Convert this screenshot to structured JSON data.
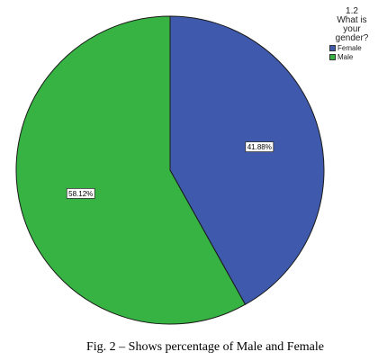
{
  "chart_data": {
    "type": "pie",
    "categories": [
      "Female",
      "Male"
    ],
    "values": [
      41.88,
      58.12
    ],
    "data_labels": [
      "41.88%",
      "58.12%"
    ],
    "colors": [
      "#3f59ad",
      "#36b342"
    ],
    "legend_position": "top-right",
    "legend": {
      "title_lines": [
        "1.2",
        "What is",
        "your",
        "gender?"
      ],
      "items": [
        "Female",
        "Male"
      ]
    }
  },
  "caption": "Fig. 2 – Shows percentage of Male and Female"
}
